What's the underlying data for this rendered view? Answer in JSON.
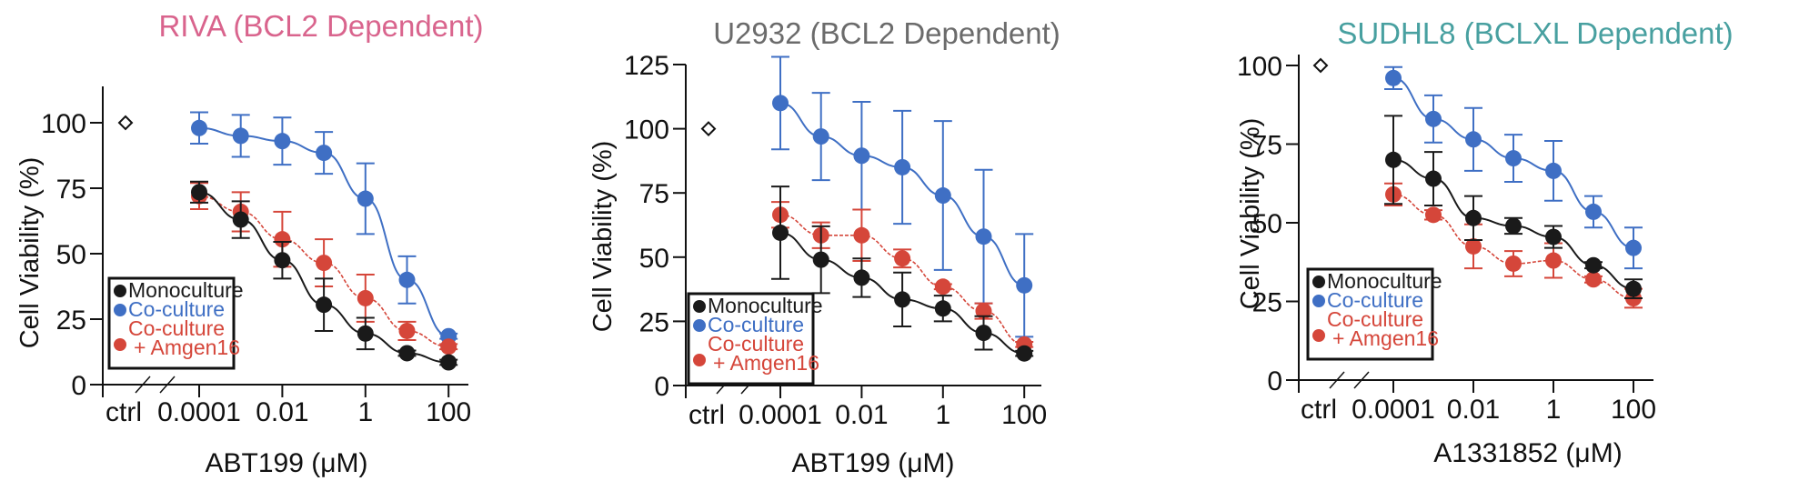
{
  "figure": {
    "colors": {
      "monoculture": "#1a1a1a",
      "coculture": "#3f6fc4",
      "coculture_amgen16": "#d5463a"
    }
  },
  "chart_data": [
    {
      "type": "line",
      "title": "RIVA (BCL2 Dependent)",
      "title_color": "#d9648d",
      "xlabel": "ABT199 (μM)",
      "ylabel": "Cell Viability (%)",
      "xscale": "log10 with broken axis (ctrl)",
      "x": [
        0.0001,
        0.001,
        0.01,
        0.1,
        1,
        10,
        100
      ],
      "x_tick_labels": [
        "ctrl",
        "0.0001",
        "0.01",
        "1",
        "100"
      ],
      "y_ticks": [
        0,
        25,
        50,
        75,
        100
      ],
      "ylim": [
        0,
        112
      ],
      "ctrl_marker": {
        "label": "ctrl",
        "value": 100,
        "shape": "open-diamond"
      },
      "legend": [
        "Monoculture",
        "Co-culture",
        "Co-culture + Amgen16"
      ],
      "legend_position": "lower-left",
      "series": [
        {
          "name": "Monoculture",
          "key": "monoculture",
          "line": "solid",
          "values": [
            73.5,
            63,
            47.5,
            30.5,
            19.5,
            12,
            8.5
          ],
          "err": [
            4,
            7,
            7,
            10,
            6,
            1,
            1
          ]
        },
        {
          "name": "Co-culture",
          "key": "coculture",
          "line": "solid",
          "values": [
            98,
            95,
            93,
            88.5,
            71,
            40,
            18.5
          ],
          "err": [
            6,
            8,
            9,
            8,
            13.5,
            9,
            1
          ]
        },
        {
          "name": "Co-culture + Amgen16",
          "key": "coculture_amgen16",
          "line": "dashed",
          "values": [
            72,
            66,
            55.5,
            46.5,
            33,
            20.5,
            14.5
          ],
          "err": [
            5,
            7.5,
            10.5,
            9,
            9,
            3.5,
            1
          ]
        }
      ]
    },
    {
      "type": "line",
      "title": "U2932 (BCL2 Dependent)",
      "title_color": "#6b6b6b",
      "xlabel": "ABT199 (μM)",
      "ylabel": "Cell Viability (%)",
      "xscale": "log10 with broken axis (ctrl)",
      "x": [
        0.0001,
        0.001,
        0.01,
        0.1,
        1,
        10,
        100
      ],
      "x_tick_labels": [
        "ctrl",
        "0.0001",
        "0.01",
        "1",
        "100"
      ],
      "y_ticks": [
        0,
        25,
        50,
        75,
        100,
        125
      ],
      "ylim": [
        0,
        125
      ],
      "ctrl_marker": {
        "label": "ctrl",
        "value": 100,
        "shape": "open-diamond"
      },
      "legend": [
        "Monoculture",
        "Co-culture",
        "Co-culture + Amgen16"
      ],
      "legend_position": "lower-left",
      "series": [
        {
          "name": "Monoculture",
          "key": "monoculture",
          "line": "solid",
          "values": [
            59.5,
            49,
            42,
            33.5,
            30,
            20.5,
            12.5
          ],
          "err": [
            18,
            13,
            7.5,
            10.5,
            5,
            6.5,
            1
          ]
        },
        {
          "name": "Co-culture",
          "key": "coculture",
          "line": "solid",
          "values": [
            110,
            97,
            89.5,
            85,
            74,
            58,
            39
          ],
          "err": [
            18,
            17,
            21,
            22,
            29,
            26,
            20
          ]
        },
        {
          "name": "Co-culture + Amgen16",
          "key": "coculture_amgen16",
          "line": "dashed",
          "values": [
            66.5,
            58.5,
            58.5,
            49.5,
            38.5,
            29,
            16
          ],
          "err": [
            5,
            5,
            10,
            3.5,
            1,
            3,
            1
          ]
        }
      ]
    },
    {
      "type": "line",
      "title": "SUDHL8 (BCLXL Dependent)",
      "title_color": "#48a0a0",
      "xlabel": "A1331852 (μM)",
      "ylabel": "Cell Viability (%)",
      "xscale": "log10 with broken axis (ctrl)",
      "x": [
        0.0001,
        0.001,
        0.01,
        0.1,
        1,
        10,
        100
      ],
      "x_tick_labels": [
        "ctrl",
        "0.0001",
        "0.01",
        "1",
        "100"
      ],
      "y_ticks": [
        0,
        25,
        50,
        75,
        100
      ],
      "ylim": [
        0,
        100
      ],
      "ctrl_marker": {
        "label": "ctrl",
        "value": 100,
        "shape": "open-diamond"
      },
      "legend": [
        "Monoculture",
        "Co-culture",
        "Co-culture + Amgen16"
      ],
      "legend_position": "lower-left",
      "series": [
        {
          "name": "Monoculture",
          "key": "monoculture",
          "line": "solid",
          "values": [
            70,
            64,
            51.5,
            49,
            45.5,
            36.5,
            29
          ],
          "err": [
            14,
            8.5,
            7,
            2.5,
            3.5,
            1,
            3
          ]
        },
        {
          "name": "Co-culture",
          "key": "coculture",
          "line": "solid",
          "values": [
            96,
            83,
            76.5,
            70.5,
            66.5,
            53.5,
            42
          ],
          "err": [
            3.5,
            7.5,
            10,
            7.5,
            9.5,
            5,
            6.5
          ]
        },
        {
          "name": "Co-culture + Amgen16",
          "key": "coculture_amgen16",
          "line": "dashed",
          "values": [
            59,
            52.5,
            42.5,
            37,
            38,
            32,
            26
          ],
          "err": [
            3.5,
            1.5,
            7,
            4,
            5.5,
            1,
            3
          ]
        }
      ]
    }
  ]
}
